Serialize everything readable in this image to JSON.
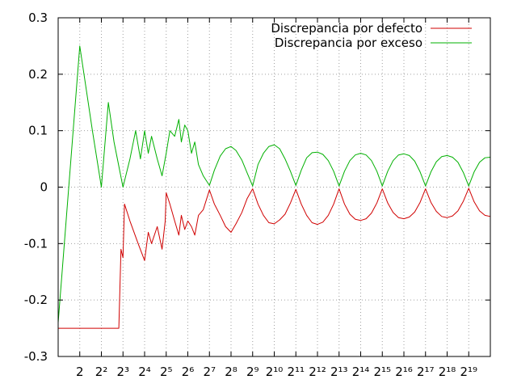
{
  "colors": {
    "defecto": "#d00000",
    "exceso": "#00b000"
  },
  "chart_data": {
    "type": "line",
    "title": "",
    "xlabel": "",
    "ylabel": "",
    "x_scale": "log2",
    "xlim": [
      1,
      1048576
    ],
    "ylim": [
      -0.3,
      0.3
    ],
    "grid": true,
    "legend_position": "top-right",
    "x_ticks": [
      {
        "x": 2,
        "label": "2"
      },
      {
        "x": 4,
        "label": "2²"
      },
      {
        "x": 8,
        "label": "2³"
      },
      {
        "x": 16,
        "label": "2⁴"
      },
      {
        "x": 32,
        "label": "2⁵"
      },
      {
        "x": 64,
        "label": "2⁶"
      },
      {
        "x": 128,
        "label": "2⁷"
      },
      {
        "x": 256,
        "label": "2⁸"
      },
      {
        "x": 512,
        "label": "2⁹"
      },
      {
        "x": 1024,
        "label": "2¹⁰"
      },
      {
        "x": 2048,
        "label": "2¹¹"
      },
      {
        "x": 4096,
        "label": "2¹²"
      },
      {
        "x": 8192,
        "label": "2¹³"
      },
      {
        "x": 16384,
        "label": "2¹⁴"
      },
      {
        "x": 32768,
        "label": "2¹⁵"
      },
      {
        "x": 65536,
        "label": "2¹⁶"
      },
      {
        "x": 131072,
        "label": "2¹⁷"
      },
      {
        "x": 262144,
        "label": "2¹⁸"
      },
      {
        "x": 524288,
        "label": "2¹⁹"
      }
    ],
    "y_ticks": [
      {
        "y": 0.3,
        "label": "0.3"
      },
      {
        "y": 0.2,
        "label": "0.2"
      },
      {
        "y": 0.1,
        "label": "0.1"
      },
      {
        "y": 0,
        "label": "0"
      },
      {
        "y": -0.1,
        "label": "-0.1"
      },
      {
        "y": -0.2,
        "label": "-0.2"
      },
      {
        "y": -0.3,
        "label": "-0.3"
      }
    ],
    "series": [
      {
        "name": "Discrepancia por defecto",
        "color": "#d00000",
        "points": [
          [
            1,
            -0.25
          ],
          [
            2,
            -0.25
          ],
          [
            4,
            -0.25
          ],
          [
            6,
            -0.25
          ],
          [
            7,
            -0.25
          ],
          [
            7.5,
            -0.11
          ],
          [
            8,
            -0.125
          ],
          [
            8.4,
            -0.03
          ],
          [
            10,
            -0.06
          ],
          [
            13,
            -0.1
          ],
          [
            16,
            -0.13
          ],
          [
            18,
            -0.08
          ],
          [
            20,
            -0.1
          ],
          [
            24,
            -0.07
          ],
          [
            28,
            -0.11
          ],
          [
            31,
            -0.06
          ],
          [
            32,
            -0.01
          ],
          [
            36,
            -0.03
          ],
          [
            42,
            -0.06
          ],
          [
            48,
            -0.085
          ],
          [
            52,
            -0.05
          ],
          [
            58,
            -0.075
          ],
          [
            64,
            -0.06
          ],
          [
            72,
            -0.07
          ],
          [
            80,
            -0.085
          ],
          [
            90,
            -0.05
          ],
          [
            105,
            -0.04
          ],
          [
            128,
            -0.005
          ],
          [
            150,
            -0.03
          ],
          [
            181,
            -0.05
          ],
          [
            215,
            -0.07
          ],
          [
            256,
            -0.08
          ],
          [
            300,
            -0.065
          ],
          [
            362,
            -0.045
          ],
          [
            430,
            -0.02
          ],
          [
            512,
            -0.003
          ],
          [
            608,
            -0.03
          ],
          [
            724,
            -0.05
          ],
          [
            861,
            -0.063
          ],
          [
            1024,
            -0.065
          ],
          [
            1218,
            -0.058
          ],
          [
            1448,
            -0.048
          ],
          [
            1722,
            -0.028
          ],
          [
            2048,
            -0.004
          ],
          [
            2435,
            -0.03
          ],
          [
            2896,
            -0.05
          ],
          [
            3444,
            -0.063
          ],
          [
            4096,
            -0.066
          ],
          [
            4871,
            -0.062
          ],
          [
            5793,
            -0.05
          ],
          [
            6889,
            -0.03
          ],
          [
            8192,
            -0.003
          ],
          [
            9742,
            -0.03
          ],
          [
            11585,
            -0.048
          ],
          [
            13777,
            -0.057
          ],
          [
            16384,
            -0.059
          ],
          [
            19484,
            -0.056
          ],
          [
            23170,
            -0.046
          ],
          [
            27554,
            -0.028
          ],
          [
            32768,
            -0.003
          ],
          [
            38968,
            -0.028
          ],
          [
            46341,
            -0.045
          ],
          [
            55109,
            -0.054
          ],
          [
            65536,
            -0.056
          ],
          [
            77936,
            -0.053
          ],
          [
            92682,
            -0.044
          ],
          [
            110218,
            -0.027
          ],
          [
            131072,
            -0.003
          ],
          [
            155872,
            -0.027
          ],
          [
            185364,
            -0.043
          ],
          [
            220436,
            -0.052
          ],
          [
            262144,
            -0.054
          ],
          [
            311744,
            -0.051
          ],
          [
            370728,
            -0.042
          ],
          [
            440872,
            -0.025
          ],
          [
            524288,
            -0.002
          ],
          [
            623487,
            -0.026
          ],
          [
            741455,
            -0.042
          ],
          [
            881744,
            -0.05
          ],
          [
            1048576,
            -0.052
          ]
        ]
      },
      {
        "name": "Discrepancia por exceso",
        "color": "#00b000",
        "points": [
          [
            1,
            -0.24
          ],
          [
            2,
            0.25
          ],
          [
            3,
            0.1
          ],
          [
            4,
            0.0
          ],
          [
            5,
            0.15
          ],
          [
            6,
            0.08
          ],
          [
            8,
            0.0
          ],
          [
            10,
            0.05
          ],
          [
            12,
            0.1
          ],
          [
            14,
            0.05
          ],
          [
            16,
            0.1
          ],
          [
            18,
            0.06
          ],
          [
            20,
            0.09
          ],
          [
            24,
            0.05
          ],
          [
            28,
            0.02
          ],
          [
            32,
            0.06
          ],
          [
            36,
            0.1
          ],
          [
            42,
            0.09
          ],
          [
            48,
            0.12
          ],
          [
            52,
            0.08
          ],
          [
            58,
            0.11
          ],
          [
            64,
            0.1
          ],
          [
            72,
            0.06
          ],
          [
            80,
            0.08
          ],
          [
            90,
            0.04
          ],
          [
            105,
            0.02
          ],
          [
            128,
            0.003
          ],
          [
            150,
            0.03
          ],
          [
            181,
            0.055
          ],
          [
            215,
            0.068
          ],
          [
            256,
            0.072
          ],
          [
            300,
            0.065
          ],
          [
            362,
            0.048
          ],
          [
            430,
            0.025
          ],
          [
            512,
            0.002
          ],
          [
            608,
            0.04
          ],
          [
            724,
            0.06
          ],
          [
            861,
            0.072
          ],
          [
            1024,
            0.075
          ],
          [
            1218,
            0.068
          ],
          [
            1448,
            0.05
          ],
          [
            1722,
            0.028
          ],
          [
            2048,
            0.003
          ],
          [
            2435,
            0.03
          ],
          [
            2896,
            0.052
          ],
          [
            3444,
            0.061
          ],
          [
            4096,
            0.062
          ],
          [
            4871,
            0.058
          ],
          [
            5793,
            0.047
          ],
          [
            6889,
            0.028
          ],
          [
            8192,
            0.002
          ],
          [
            9742,
            0.028
          ],
          [
            11585,
            0.047
          ],
          [
            13777,
            0.057
          ],
          [
            16384,
            0.06
          ],
          [
            19484,
            0.057
          ],
          [
            23170,
            0.047
          ],
          [
            27554,
            0.028
          ],
          [
            32768,
            0.002
          ],
          [
            38968,
            0.028
          ],
          [
            46341,
            0.047
          ],
          [
            55109,
            0.057
          ],
          [
            65536,
            0.059
          ],
          [
            77936,
            0.056
          ],
          [
            92682,
            0.046
          ],
          [
            110218,
            0.027
          ],
          [
            131072,
            0.002
          ],
          [
            155872,
            0.027
          ],
          [
            185364,
            0.045
          ],
          [
            220436,
            0.054
          ],
          [
            262144,
            0.056
          ],
          [
            311744,
            0.053
          ],
          [
            370728,
            0.044
          ],
          [
            440872,
            0.026
          ],
          [
            524288,
            0.002
          ],
          [
            623487,
            0.027
          ],
          [
            741455,
            0.044
          ],
          [
            881744,
            0.052
          ],
          [
            1048576,
            0.053
          ]
        ]
      }
    ]
  }
}
